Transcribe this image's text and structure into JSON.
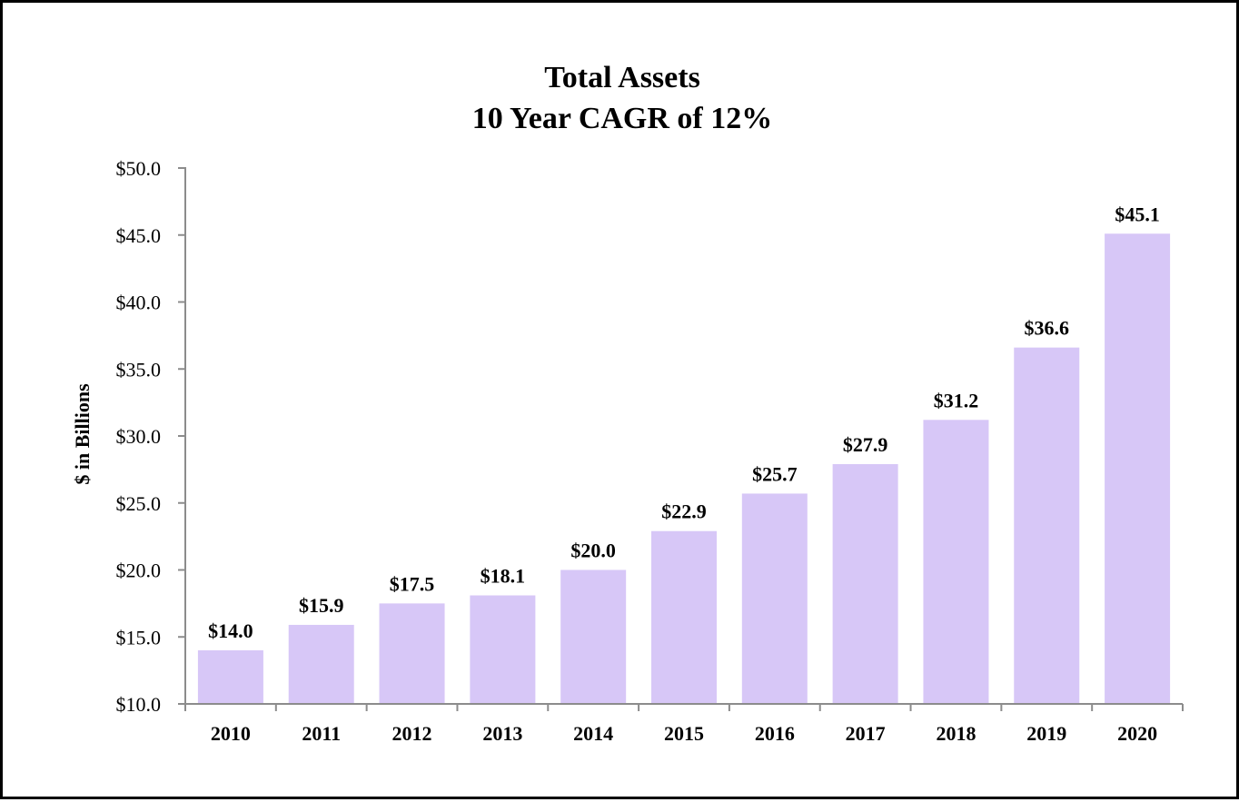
{
  "chart_data": {
    "type": "bar",
    "title_lines": [
      "Total Assets",
      "10 Year CAGR of 12%"
    ],
    "xlabel": "",
    "ylabel": "$ in Billions",
    "categories": [
      "2010",
      "2011",
      "2012",
      "2013",
      "2014",
      "2015",
      "2016",
      "2017",
      "2018",
      "2019",
      "2020"
    ],
    "values": [
      14.0,
      15.9,
      17.5,
      18.1,
      20.0,
      22.9,
      25.7,
      27.9,
      31.2,
      36.6,
      45.1
    ],
    "data_labels": [
      "$14.0",
      "$15.9",
      "$17.5",
      "$18.1",
      "$20.0",
      "$22.9",
      "$25.7",
      "$27.9",
      "$31.2",
      "$36.6",
      "$45.1"
    ],
    "ylim": [
      10.0,
      50.0
    ],
    "yticks": [
      10.0,
      15.0,
      20.0,
      25.0,
      30.0,
      35.0,
      40.0,
      45.0,
      50.0
    ],
    "ytick_labels": [
      "$10.0",
      "$15.0",
      "$20.0",
      "$25.0",
      "$30.0",
      "$35.0",
      "$40.0",
      "$45.0",
      "$50.0"
    ],
    "grid": false,
    "legend": "none",
    "colors": {
      "bar": "#d7c7f7",
      "axis": "#8c8c8c",
      "text": "#000000"
    }
  }
}
